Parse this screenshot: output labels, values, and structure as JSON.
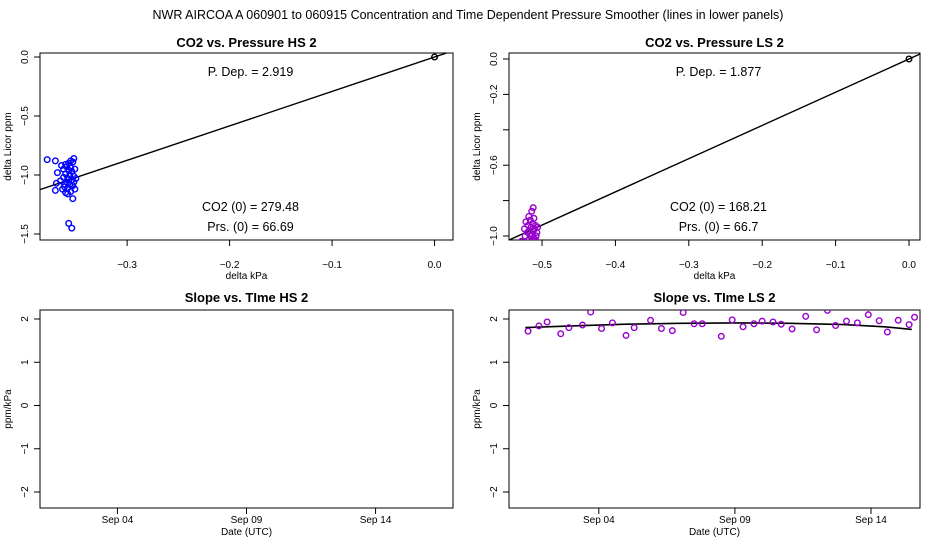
{
  "figure_title": "NWR   AIRCOA A   060901 to 060915   Concentration and Time Dependent Pressure Smoother (lines in lower panels)",
  "colors": {
    "hs": "#0000ff",
    "ls": "#9900cc",
    "line": "#000000"
  },
  "chart_data": [
    {
      "type": "scatter",
      "title": "CO2 vs. Pressure HS 2",
      "xlabel": "delta kPa",
      "ylabel": "delta Licor ppm",
      "xlim": [
        -0.385,
        0.018
      ],
      "ylim": [
        -1.5,
        0.05
      ],
      "xticks": [
        -0.3,
        -0.2,
        -0.1,
        0.0
      ],
      "xtick_labels": [
        "−0.3",
        "−0.2",
        "−0.1",
        "0.0"
      ],
      "yticks": [
        0.0,
        -0.5,
        -1.0,
        -1.5
      ],
      "ytick_labels": [
        "0.0",
        "−0.5",
        "−1.0",
        "−1.5"
      ],
      "point_color": "#0000ff",
      "points": [
        [
          -0.378,
          -0.87
        ],
        [
          -0.37,
          -0.88
        ],
        [
          -0.368,
          -0.98
        ],
        [
          -0.369,
          -1.07
        ],
        [
          -0.37,
          -1.13
        ],
        [
          -0.365,
          -1.05
        ],
        [
          -0.364,
          -0.92
        ],
        [
          -0.363,
          -1.12
        ],
        [
          -0.362,
          -0.95
        ],
        [
          -0.362,
          -1.02
        ],
        [
          -0.361,
          -1.1
        ],
        [
          -0.36,
          -0.91
        ],
        [
          -0.36,
          -0.99
        ],
        [
          -0.36,
          -1.15
        ],
        [
          -0.359,
          -1.06
        ],
        [
          -0.359,
          -0.93
        ],
        [
          -0.358,
          -1.03
        ],
        [
          -0.358,
          -1.11
        ],
        [
          -0.357,
          -0.96
        ],
        [
          -0.357,
          -0.9
        ],
        [
          -0.356,
          -1.08
        ],
        [
          -0.356,
          -1.0
        ],
        [
          -0.355,
          -0.94
        ],
        [
          -0.355,
          -1.14
        ],
        [
          -0.354,
          -1.04
        ],
        [
          -0.354,
          -0.97
        ],
        [
          -0.353,
          -1.2
        ],
        [
          -0.353,
          -0.89
        ],
        [
          -0.353,
          -1.09
        ],
        [
          -0.352,
          -1.01
        ],
        [
          -0.352,
          -0.86
        ],
        [
          -0.352,
          -1.06
        ],
        [
          -0.351,
          -0.95
        ],
        [
          -0.351,
          -1.12
        ],
        [
          -0.35,
          -1.03
        ],
        [
          -0.357,
          -1.41
        ],
        [
          -0.354,
          -1.45
        ],
        [
          -0.358,
          -1.16
        ],
        [
          -0.355,
          -0.88
        ],
        [
          -0.361,
          -1.08
        ]
      ],
      "ref_point": [
        0.0,
        0.0
      ],
      "fit_line": {
        "slope": 2.919,
        "intercept": 0.0
      },
      "annotations": {
        "pdep": "P. Dep. =  2.919",
        "co2": "CO2 (0) =  279.48",
        "prs": "Prs. (0) =  66.69"
      }
    },
    {
      "type": "scatter",
      "title": "CO2 vs. Pressure LS 2",
      "xlabel": "delta kPa",
      "ylabel": "delta Licor ppm",
      "xlim": [
        -0.545,
        0.015
      ],
      "ylim": [
        -1.1,
        0.04
      ],
      "xticks": [
        -0.5,
        -0.4,
        -0.3,
        -0.2,
        -0.1,
        0.0
      ],
      "xtick_labels": [
        "−0.5",
        "−0.4",
        "−0.3",
        "−0.2",
        "−0.1",
        "0.0"
      ],
      "yticks": [
        0.0,
        -0.2,
        -0.6,
        -1.0
      ],
      "ytick_labels": [
        "0.0",
        "−0.2",
        "−0.6",
        "−1.0"
      ],
      "minor_yticks": [
        -0.4,
        -0.8
      ],
      "point_color": "#9900cc",
      "points": [
        [
          -0.528,
          -1.03
        ],
        [
          -0.526,
          -1.07
        ],
        [
          -0.524,
          -0.96
        ],
        [
          -0.523,
          -1.0
        ],
        [
          -0.522,
          -0.92
        ],
        [
          -0.521,
          -1.05
        ],
        [
          -0.52,
          -0.98
        ],
        [
          -0.52,
          -1.09
        ],
        [
          -0.519,
          -0.94
        ],
        [
          -0.518,
          -1.02
        ],
        [
          -0.518,
          -0.89
        ],
        [
          -0.517,
          -0.97
        ],
        [
          -0.517,
          -1.06
        ],
        [
          -0.516,
          -0.91
        ],
        [
          -0.516,
          -1.0
        ],
        [
          -0.515,
          -0.95
        ],
        [
          -0.515,
          -1.04
        ],
        [
          -0.514,
          -0.86
        ],
        [
          -0.514,
          -0.99
        ],
        [
          -0.513,
          -1.08
        ],
        [
          -0.513,
          -0.93
        ],
        [
          -0.512,
          -1.01
        ],
        [
          -0.512,
          -0.97
        ],
        [
          -0.511,
          -1.03
        ],
        [
          -0.511,
          -0.9
        ],
        [
          -0.51,
          -0.96
        ],
        [
          -0.51,
          -1.05
        ],
        [
          -0.509,
          -0.94
        ],
        [
          -0.508,
          -1.0
        ],
        [
          -0.507,
          -0.98
        ],
        [
          -0.506,
          -0.95
        ],
        [
          -0.512,
          -0.84
        ],
        [
          -0.515,
          -1.1
        ],
        [
          -0.52,
          -1.11
        ],
        [
          -0.509,
          -1.02
        ]
      ],
      "ref_point": [
        0.0,
        0.0
      ],
      "fit_line": {
        "slope": 1.877,
        "intercept": 0.0
      },
      "annotations": {
        "pdep": "P. Dep. =  1.877",
        "co2": "CO2 (0) =  168.21",
        "prs": "Prs. (0) =  66.7"
      }
    },
    {
      "type": "line",
      "title": "Slope vs. TIme HS 2",
      "xlabel": "Date (UTC)",
      "ylabel": "ppm/kPa",
      "xlim": [
        0,
        16
      ],
      "ylim": [
        -2.2,
        2.2
      ],
      "xticks": [
        3,
        8,
        13
      ],
      "xtick_labels": [
        "Sep 04",
        "Sep 09",
        "Sep 14"
      ],
      "yticks": [
        2,
        1,
        0,
        -1,
        -2
      ],
      "ytick_labels": [
        "2",
        "1",
        "0",
        "−1",
        "−2"
      ],
      "points": [],
      "smoother": []
    },
    {
      "type": "line",
      "title": "Slope vs. TIme LS 2",
      "xlabel": "Date (UTC)",
      "ylabel": "ppm/kPa",
      "xlim": [
        -0.8,
        14.3
      ],
      "ylim": [
        -2.2,
        2.2
      ],
      "xticks": [
        2.5,
        7.5,
        12.5
      ],
      "xtick_labels": [
        "Sep 04",
        "Sep 09",
        "Sep 14"
      ],
      "yticks": [
        2,
        1,
        0,
        -1,
        -2
      ],
      "ytick_labels": [
        "2",
        "1",
        "0",
        "−1",
        "−2"
      ],
      "point_color": "#9900cc",
      "points": [
        [
          -0.1,
          1.72
        ],
        [
          0.3,
          1.84
        ],
        [
          0.6,
          1.93
        ],
        [
          1.1,
          1.66
        ],
        [
          1.4,
          1.8
        ],
        [
          1.9,
          1.86
        ],
        [
          2.2,
          2.16
        ],
        [
          2.6,
          1.78
        ],
        [
          3.0,
          1.91
        ],
        [
          3.5,
          1.62
        ],
        [
          3.8,
          1.8
        ],
        [
          4.4,
          1.97
        ],
        [
          4.8,
          1.78
        ],
        [
          5.2,
          1.73
        ],
        [
          5.6,
          2.15
        ],
        [
          6.0,
          1.89
        ],
        [
          6.3,
          1.89
        ],
        [
          7.0,
          1.6
        ],
        [
          7.4,
          1.98
        ],
        [
          7.8,
          1.82
        ],
        [
          8.2,
          1.89
        ],
        [
          8.5,
          1.95
        ],
        [
          8.9,
          1.93
        ],
        [
          9.2,
          1.88
        ],
        [
          9.6,
          1.77
        ],
        [
          10.1,
          2.06
        ],
        [
          10.5,
          1.75
        ],
        [
          10.9,
          2.2
        ],
        [
          11.2,
          1.85
        ],
        [
          11.6,
          1.95
        ],
        [
          12.0,
          1.91
        ],
        [
          12.4,
          2.1
        ],
        [
          12.8,
          1.96
        ],
        [
          13.1,
          1.7
        ],
        [
          13.5,
          1.97
        ],
        [
          13.9,
          1.87
        ],
        [
          14.1,
          2.04
        ]
      ],
      "smoother": [
        [
          -0.2,
          1.8
        ],
        [
          1.5,
          1.84
        ],
        [
          3.5,
          1.88
        ],
        [
          5.5,
          1.9
        ],
        [
          7.5,
          1.91
        ],
        [
          9.5,
          1.9
        ],
        [
          11.5,
          1.87
        ],
        [
          13.0,
          1.82
        ],
        [
          14.0,
          1.76
        ]
      ]
    }
  ]
}
